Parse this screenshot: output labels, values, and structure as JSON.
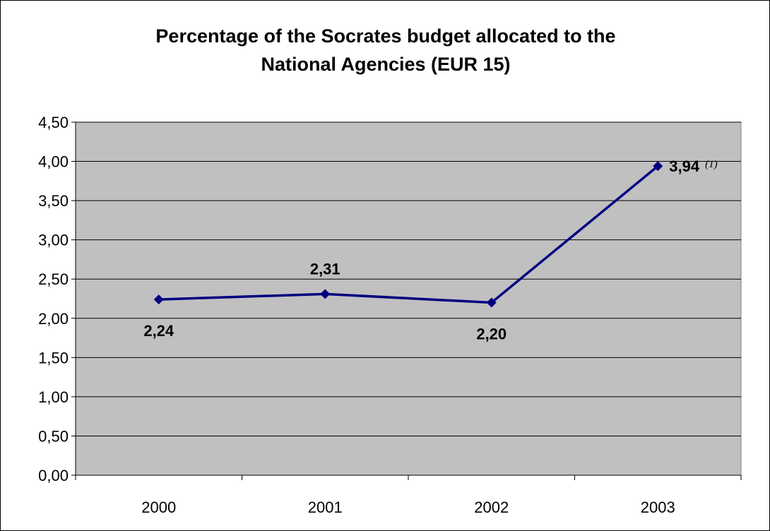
{
  "chart_data": {
    "type": "line",
    "title_lines": [
      "Percentage of the Socrates budget allocated to the",
      "National Agencies (EUR 15)"
    ],
    "categories": [
      "2000",
      "2001",
      "2002",
      "2003"
    ],
    "series": [
      {
        "values": [
          2.24,
          2.31,
          2.2,
          3.94
        ]
      }
    ],
    "data_labels": [
      "2,24",
      "2,31",
      "2,20",
      "3,94"
    ],
    "annotations": [
      {
        "category": "2003",
        "text": "(1)"
      }
    ],
    "y_ticks": [
      "0,00",
      "0,50",
      "1,00",
      "1,50",
      "2,00",
      "2,50",
      "3,00",
      "3,50",
      "4,00",
      "4,50"
    ],
    "ylim": [
      0,
      4.5
    ],
    "y_step": 0.5,
    "grid": true,
    "legend": "none",
    "colors": {
      "line": "#000080",
      "plot_background": "#C0C0C0",
      "grid": "#000000"
    }
  }
}
